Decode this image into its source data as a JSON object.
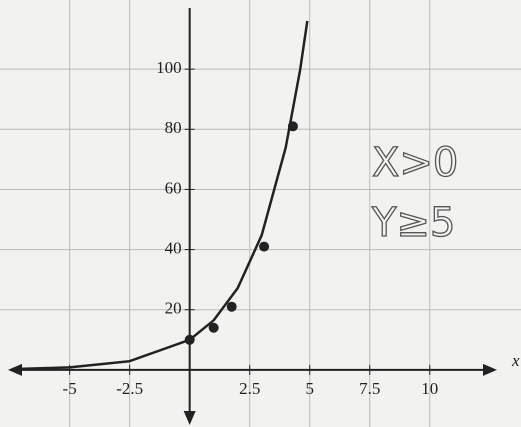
{
  "chart_data": {
    "type": "line",
    "x_label": "x",
    "annotations": [
      "X>0",
      "Y≥5"
    ],
    "xlim": [
      -7.9,
      13.8
    ],
    "ylim": [
      -19,
      123
    ],
    "xticks": [
      -5,
      -2.5,
      2.5,
      5,
      7.5,
      10
    ],
    "yticks": [
      20,
      40,
      60,
      80,
      100
    ],
    "grid": true,
    "series": [
      {
        "color": "#222222",
        "x": [
          -7.4,
          -5,
          -2.5,
          0,
          1,
          2,
          3,
          4,
          4.6,
          4.9
        ],
        "values": [
          0.25,
          0.82,
          2.87,
          10,
          16.5,
          27.2,
          44.8,
          73.9,
          99.7,
          116
        ]
      },
      {
        "color": "#222222",
        "points": true,
        "x": [
          0,
          1,
          1.75,
          3.1,
          4.3
        ],
        "values": [
          10,
          14,
          21,
          41,
          81
        ]
      }
    ]
  }
}
